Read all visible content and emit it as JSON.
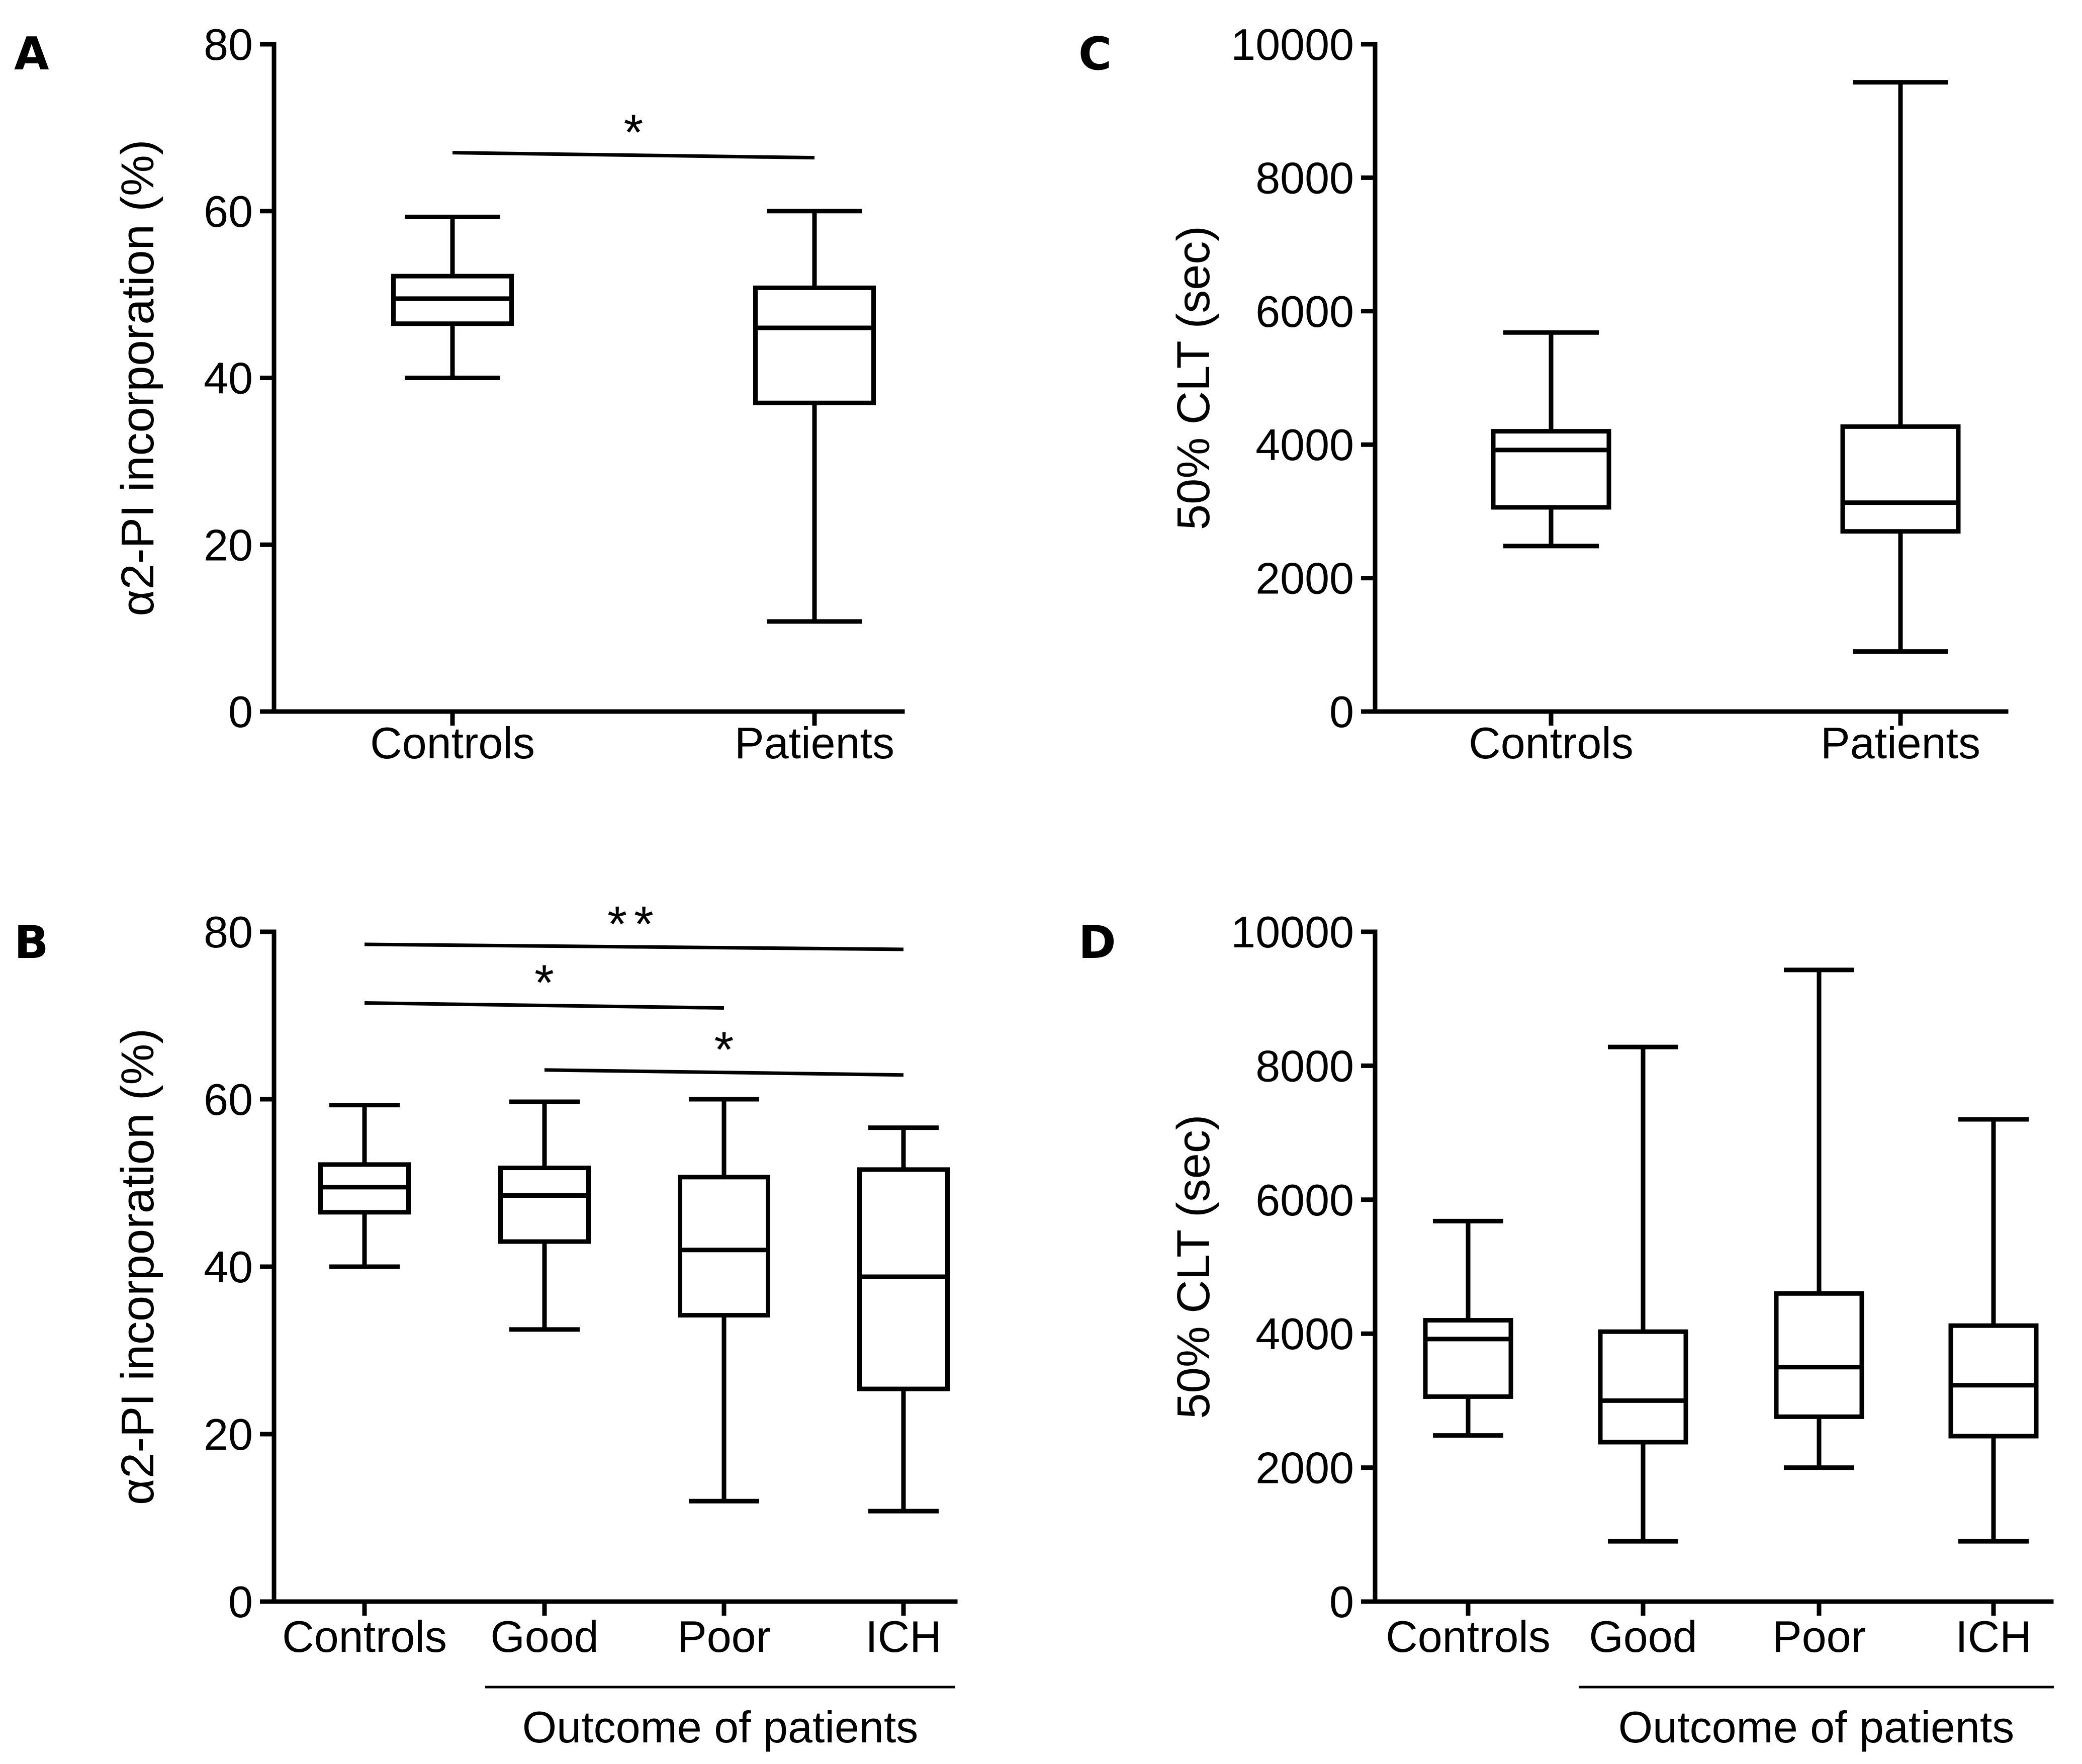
{
  "chart_data": [
    {
      "panel": "A",
      "type": "boxplot",
      "ylabel": "α2-PI incorporation (%)",
      "ylim": [
        0,
        80
      ],
      "yticks": [
        0,
        20,
        40,
        60,
        80
      ],
      "categories": [
        "Controls",
        "Patients"
      ],
      "boxes": [
        {
          "name": "Controls",
          "min": 40,
          "q1": 46.5,
          "median": 49.5,
          "q3": 52.2,
          "max": 59.3
        },
        {
          "name": "Patients",
          "min": 10.8,
          "q1": 37,
          "median": 46,
          "q3": 50.8,
          "max": 60
        }
      ],
      "significance": [
        {
          "from": "Controls",
          "to": "Patients",
          "label": "*",
          "y": 67
        }
      ]
    },
    {
      "panel": "B",
      "type": "boxplot",
      "ylabel": "α2-PI incorporation (%)",
      "ylim": [
        0,
        80
      ],
      "yticks": [
        0,
        20,
        40,
        60,
        80
      ],
      "categories": [
        "Controls",
        "Good",
        "Poor",
        "ICH"
      ],
      "group_label": "Outcome of patients",
      "group_span": [
        "Good",
        "ICH"
      ],
      "boxes": [
        {
          "name": "Controls",
          "min": 40,
          "q1": 46.5,
          "median": 49.5,
          "q3": 52.2,
          "max": 59.3
        },
        {
          "name": "Good",
          "min": 32.5,
          "q1": 43,
          "median": 48.5,
          "q3": 51.8,
          "max": 59.7
        },
        {
          "name": "Poor",
          "min": 12,
          "q1": 34.2,
          "median": 42,
          "q3": 50.7,
          "max": 60
        },
        {
          "name": "ICH",
          "min": 10.8,
          "q1": 25.4,
          "median": 38.8,
          "q3": 51.6,
          "max": 56.6
        }
      ],
      "significance": [
        {
          "from": "Controls",
          "to": "ICH",
          "label": "**",
          "y": 78.5
        },
        {
          "from": "Controls",
          "to": "Poor",
          "label": "*",
          "y": 71.5
        },
        {
          "from": "Good",
          "to": "ICH",
          "label": "*",
          "y": 63.5
        }
      ]
    },
    {
      "panel": "C",
      "type": "boxplot",
      "ylabel": "50% CLT (sec)",
      "ylim": [
        0,
        10000
      ],
      "yticks": [
        0,
        2000,
        4000,
        6000,
        8000,
        10000
      ],
      "categories": [
        "Controls",
        "Patients"
      ],
      "boxes": [
        {
          "name": "Controls",
          "min": 2480,
          "q1": 3060,
          "median": 3920,
          "q3": 4200,
          "max": 5680
        },
        {
          "name": "Patients",
          "min": 900,
          "q1": 2700,
          "median": 3130,
          "q3": 4270,
          "max": 9430
        }
      ],
      "significance": []
    },
    {
      "panel": "D",
      "type": "boxplot",
      "ylabel": "50% CLT (sec)",
      "ylim": [
        0,
        10000
      ],
      "yticks": [
        0,
        2000,
        4000,
        6000,
        8000,
        10000
      ],
      "categories": [
        "Controls",
        "Good",
        "Poor",
        "ICH"
      ],
      "group_label": "Outcome of patients",
      "group_span": [
        "Good",
        "ICH"
      ],
      "boxes": [
        {
          "name": "Controls",
          "min": 2480,
          "q1": 3060,
          "median": 3920,
          "q3": 4200,
          "max": 5680
        },
        {
          "name": "Good",
          "min": 900,
          "q1": 2380,
          "median": 3000,
          "q3": 4030,
          "max": 8280
        },
        {
          "name": "Poor",
          "min": 2000,
          "q1": 2760,
          "median": 3500,
          "q3": 4600,
          "max": 9430
        },
        {
          "name": "ICH",
          "min": 900,
          "q1": 2470,
          "median": 3230,
          "q3": 4120,
          "max": 7200
        }
      ],
      "significance": []
    }
  ]
}
